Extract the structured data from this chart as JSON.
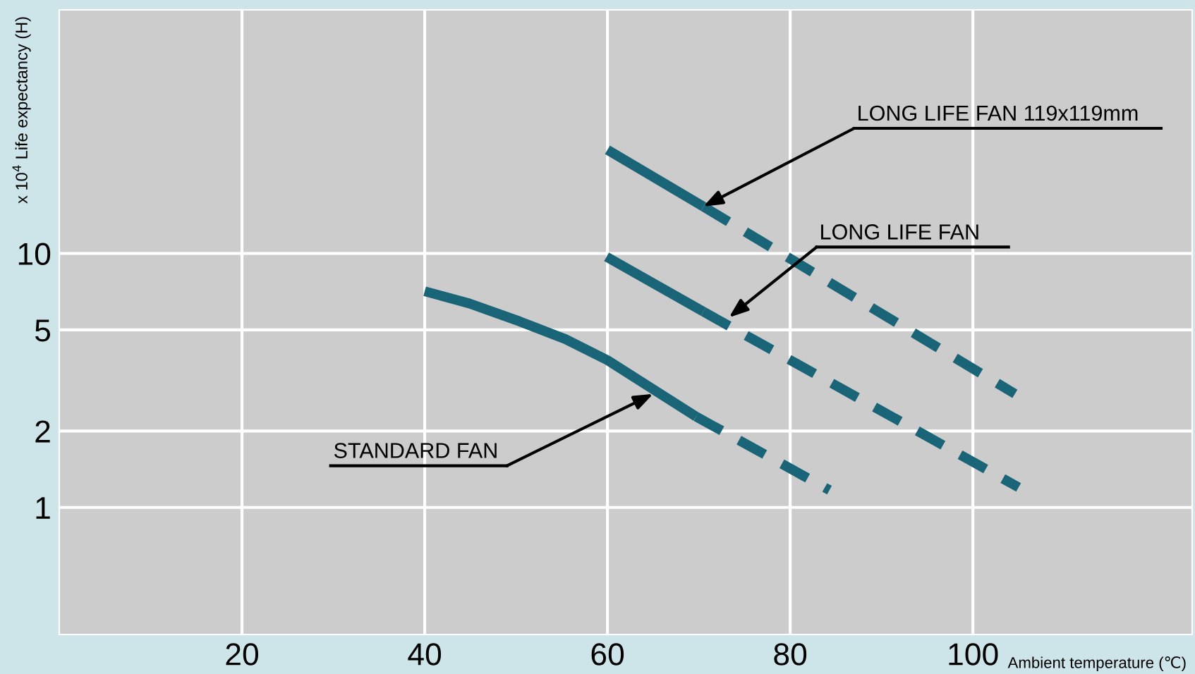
{
  "chart_data": {
    "type": "line",
    "xlabel": "Ambient temperature (℃)",
    "ylabel": "x 10$^{4}$ Life expectancy (H)",
    "log": "y",
    "xlim": [
      0,
      124
    ],
    "ylim": [
      0.316,
      91
    ],
    "xticks": [
      20,
      40,
      60,
      80,
      100
    ],
    "yticks": [
      1,
      2,
      5,
      10
    ],
    "grid": true,
    "series": [
      {
        "color": "#1a6478",
        "line_style": "solid",
        "x": [
          60,
          70.5
        ],
        "values": [
          25.6,
          15.3
        ]
      },
      {
        "color": "#1a6478",
        "line_style": "dashed",
        "x": [
          70.5,
          104.6
        ],
        "values": [
          15.3,
          2.8
        ]
      },
      {
        "color": "#1a6478",
        "line_style": "solid",
        "x": [
          59.9,
          70.5
        ],
        "values": [
          9.7,
          5.9
        ]
      },
      {
        "color": "#1a6478",
        "line_style": "dashed",
        "x": [
          70.5,
          105
        ],
        "values": [
          5.9,
          1.2
        ]
      },
      {
        "color": "#1a6478",
        "line_style": "solid",
        "x": [
          40,
          44.9,
          50.4,
          55.4,
          60,
          69.7
        ],
        "values": [
          7.1,
          6.35,
          5.4,
          4.6,
          3.8,
          2.28
        ]
      },
      {
        "color": "#1a6478",
        "line_style": "dashed",
        "x": [
          69.7,
          84.3
        ],
        "values": [
          2.28,
          1.17
        ]
      }
    ],
    "annotations": [
      {
        "text": "LONG LIFE FAN 119x119mm",
        "x": 70.5,
        "y": 15.3
      },
      {
        "text": "LONG LIFE FAN",
        "x": 73.3,
        "y": 5.6
      },
      {
        "text": "STANDARD FAN",
        "x": 65.0,
        "y": 2.8
      }
    ]
  }
}
